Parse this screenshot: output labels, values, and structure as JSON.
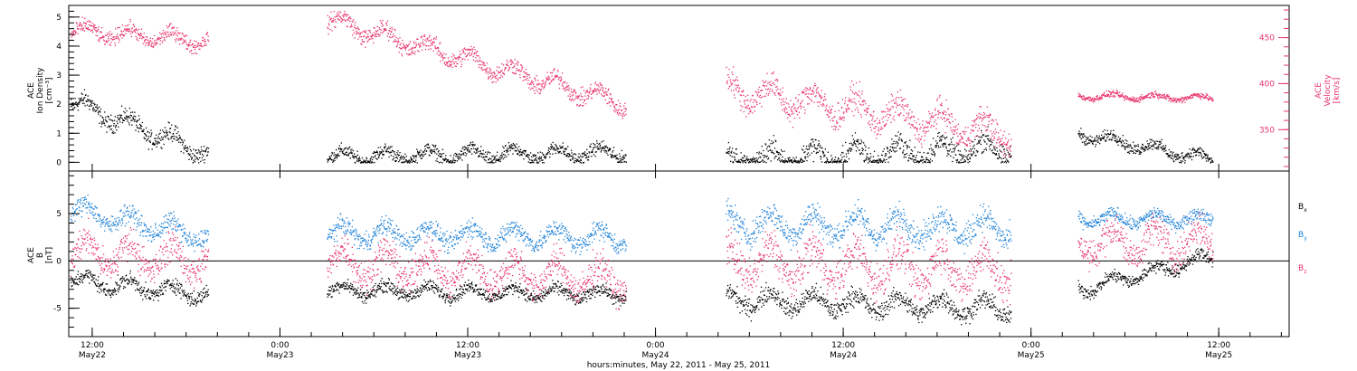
{
  "colors": {
    "black": "#000000",
    "pink": "#e8336a",
    "blue": "#1e82d8"
  },
  "chart_data": [
    {
      "type": "scatter",
      "panel": "top",
      "ylabel_left": [
        "ACE",
        "Ion Density",
        "[cm⁻³]"
      ],
      "ylabel_right": [
        "ACE",
        "Velocity",
        "[km/s]"
      ],
      "yticks_left": [
        "0",
        "1",
        "2",
        "3",
        "4",
        "5"
      ],
      "ylim_left": [
        -0.3,
        5.4
      ],
      "yticks_right": [
        "350",
        "400",
        "450"
      ],
      "ylim_right": [
        305,
        485
      ],
      "series": [
        {
          "color": "black",
          "axis": "left",
          "segments": [
            {
              "hours": [
                10.6,
                19.4
              ],
              "level": [
                2.1,
                0.3
              ],
              "spread": 0.45
            },
            {
              "hours": [
                27.0,
                46.1
              ],
              "level": [
                0.2,
                0.35
              ],
              "spread": 0.35
            },
            {
              "hours": [
                52.5,
                70.7
              ],
              "level": [
                0.05,
                0.5
              ],
              "spread": 0.6
            },
            {
              "hours": [
                75.0,
                83.6
              ],
              "level": [
                1.0,
                0.1
              ],
              "spread": 0.3
            }
          ]
        },
        {
          "color": "pink",
          "axis": "right",
          "segments": [
            {
              "hours": [
                10.6,
                19.4
              ],
              "level": [
                458,
                447
              ],
              "spread": 12
            },
            {
              "hours": [
                27.0,
                46.1
              ],
              "level": [
                470,
                378
              ],
              "spread": 14
            },
            {
              "hours": [
                52.5,
                70.7
              ],
              "level": [
                395,
                345
              ],
              "spread": 22
            },
            {
              "hours": [
                75.0,
                83.6
              ],
              "level": [
                387,
                385
              ],
              "spread": 5
            }
          ]
        }
      ]
    },
    {
      "type": "scatter",
      "panel": "bottom",
      "ylabel_left": [
        "ACE",
        "B",
        "[nT]"
      ],
      "yticks_left": [
        "-5",
        "0",
        "5"
      ],
      "ylim_left": [
        -8,
        9.5
      ],
      "legend": [
        "B",
        "B",
        "B"
      ],
      "legend_sub": [
        "x",
        "y",
        "z"
      ],
      "series": [
        {
          "name": "Bx",
          "color": "black",
          "segments": [
            {
              "hours": [
                10.6,
                19.4
              ],
              "level": [
                -2,
                -3.5
              ],
              "spread": 1.2
            },
            {
              "hours": [
                27.0,
                46.1
              ],
              "level": [
                -3,
                -3.5
              ],
              "spread": 1.0
            },
            {
              "hours": [
                52.5,
                70.7
              ],
              "level": [
                -4,
                -5
              ],
              "spread": 1.5
            },
            {
              "hours": [
                75.0,
                83.6
              ],
              "level": [
                -3,
                0.5
              ],
              "spread": 1.0
            }
          ]
        },
        {
          "name": "By",
          "color": "blue",
          "segments": [
            {
              "hours": [
                10.6,
                19.4
              ],
              "level": [
                5.5,
                2.5
              ],
              "spread": 1.5
            },
            {
              "hours": [
                27.0,
                46.1
              ],
              "level": [
                3,
                2.5
              ],
              "spread": 1.5
            },
            {
              "hours": [
                52.5,
                70.7
              ],
              "level": [
                4,
                3.5
              ],
              "spread": 2.0
            },
            {
              "hours": [
                75.0,
                83.6
              ],
              "level": [
                4.5,
                4.5
              ],
              "spread": 1.0
            }
          ]
        },
        {
          "name": "Bz",
          "color": "pink",
          "segments": [
            {
              "hours": [
                10.6,
                19.4
              ],
              "level": [
                1,
                0
              ],
              "spread": 2.5
            },
            {
              "hours": [
                27.0,
                46.1
              ],
              "level": [
                0,
                -2
              ],
              "spread": 2.5
            },
            {
              "hours": [
                52.5,
                70.7
              ],
              "level": [
                0,
                -1
              ],
              "spread": 3.0
            },
            {
              "hours": [
                75.0,
                83.6
              ],
              "level": [
                2,
                2
              ],
              "spread": 2.5
            }
          ]
        }
      ],
      "zero_line": 0
    }
  ],
  "xaxis": {
    "range_hours": [
      10.5,
      88.5
    ],
    "ticks": [
      {
        "hour": 12,
        "time": "12:00",
        "date": "May22"
      },
      {
        "hour": 24,
        "time": "0:00",
        "date": "May23"
      },
      {
        "hour": 36,
        "time": "12:00",
        "date": "May23"
      },
      {
        "hour": 48,
        "time": "0:00",
        "date": "May24"
      },
      {
        "hour": 60,
        "time": "12:00",
        "date": "May24"
      },
      {
        "hour": 72,
        "time": "0:00",
        "date": "May25"
      },
      {
        "hour": 84,
        "time": "12:00",
        "date": "May25"
      }
    ],
    "xlabel": "hours:minutes, May 22, 2011 - May 25, 2011"
  }
}
